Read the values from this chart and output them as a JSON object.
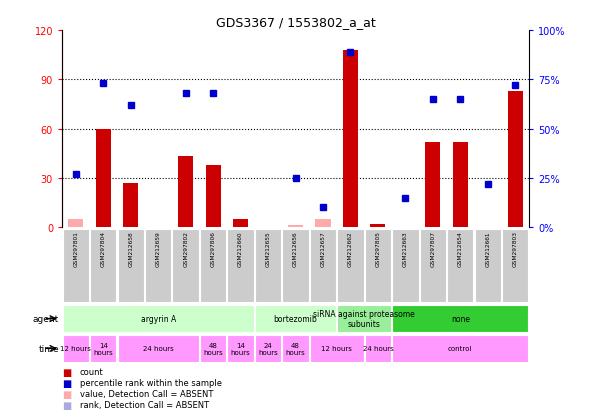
{
  "title": "GDS3367 / 1553802_a_at",
  "samples": [
    "GSM297801",
    "GSM297804",
    "GSM212658",
    "GSM212659",
    "GSM297802",
    "GSM297806",
    "GSM212660",
    "GSM212655",
    "GSM212656",
    "GSM212657",
    "GSM212662",
    "GSM297805",
    "GSM212663",
    "GSM297807",
    "GSM212654",
    "GSM212661",
    "GSM297803"
  ],
  "count_values": [
    5,
    60,
    27,
    0,
    43,
    38,
    5,
    0,
    1,
    5,
    108,
    2,
    0,
    52,
    52,
    0,
    83
  ],
  "count_absent": [
    true,
    false,
    false,
    true,
    false,
    false,
    false,
    true,
    true,
    true,
    false,
    false,
    true,
    false,
    false,
    true,
    false
  ],
  "percentile_values": [
    27,
    73,
    62,
    0,
    68,
    68,
    0,
    0,
    25,
    10,
    89,
    0,
    15,
    65,
    65,
    22,
    72
  ],
  "percentile_absent": [
    false,
    false,
    false,
    true,
    false,
    false,
    true,
    true,
    false,
    false,
    false,
    false,
    false,
    false,
    false,
    false,
    false
  ],
  "ylim_left": [
    0,
    120
  ],
  "ylim_right": [
    0,
    100
  ],
  "yticks_left": [
    0,
    30,
    60,
    90,
    120
  ],
  "yticks_right": [
    0,
    25,
    50,
    75,
    100
  ],
  "ytick_labels_left": [
    "0",
    "30",
    "60",
    "90",
    "120"
  ],
  "ytick_labels_right": [
    "0%",
    "25%",
    "50%",
    "75%",
    "100%"
  ],
  "bar_color_present": "#cc0000",
  "bar_color_absent": "#ffaaaa",
  "dot_color_present": "#0000cc",
  "dot_color_absent": "#aaaadd",
  "bg_color": "#ffffff",
  "sample_bg_color": "#cccccc",
  "agent_groups": [
    {
      "label": "argyrin A",
      "cols": [
        0,
        1,
        2,
        3,
        4,
        5,
        6
      ],
      "color": "#ccffcc"
    },
    {
      "label": "bortezomib",
      "cols": [
        7,
        8,
        9
      ],
      "color": "#ccffcc"
    },
    {
      "label": "siRNA against proteasome\nsubunits",
      "cols": [
        10,
        11
      ],
      "color": "#99ee99"
    },
    {
      "label": "none",
      "cols": [
        12,
        13,
        14,
        15,
        16
      ],
      "color": "#33cc33"
    }
  ],
  "time_groups": [
    {
      "label": "12 hours",
      "cols": [
        0
      ],
      "color": "#ff99ff"
    },
    {
      "label": "14\nhours",
      "cols": [
        1
      ],
      "color": "#ff99ff"
    },
    {
      "label": "24 hours",
      "cols": [
        2,
        3,
        4
      ],
      "color": "#ff99ff"
    },
    {
      "label": "48\nhours",
      "cols": [
        5
      ],
      "color": "#ff99ff"
    },
    {
      "label": "14\nhours",
      "cols": [
        6
      ],
      "color": "#ff99ff"
    },
    {
      "label": "24\nhours",
      "cols": [
        7
      ],
      "color": "#ff99ff"
    },
    {
      "label": "48\nhours",
      "cols": [
        8
      ],
      "color": "#ff99ff"
    },
    {
      "label": "12 hours",
      "cols": [
        9,
        10
      ],
      "color": "#ff99ff"
    },
    {
      "label": "24 hours",
      "cols": [
        11
      ],
      "color": "#ff99ff"
    },
    {
      "label": "control",
      "cols": [
        12,
        13,
        14,
        15,
        16
      ],
      "color": "#ff99ff"
    }
  ],
  "legend_items": [
    {
      "color": "#cc0000",
      "label": "count"
    },
    {
      "color": "#0000cc",
      "label": "percentile rank within the sample"
    },
    {
      "color": "#ffaaaa",
      "label": "value, Detection Call = ABSENT"
    },
    {
      "color": "#aaaadd",
      "label": "rank, Detection Call = ABSENT"
    }
  ]
}
